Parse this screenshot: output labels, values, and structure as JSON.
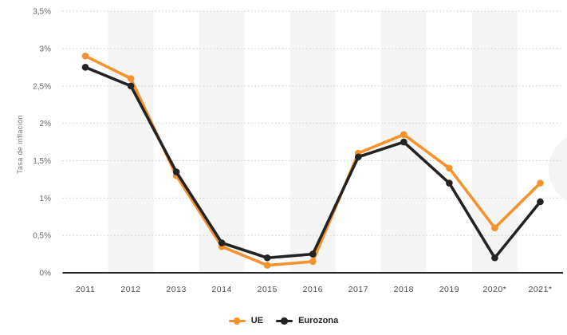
{
  "chart_data": {
    "type": "line",
    "title": "",
    "ylabel": "Tasa de inflación",
    "xlabel": "",
    "categories": [
      "2011",
      "2012",
      "2013",
      "2014",
      "2015",
      "2016",
      "2017",
      "2018",
      "2019",
      "2020*",
      "2021*"
    ],
    "series": [
      {
        "name": "UE",
        "color": "#F6922E",
        "values": [
          2.9,
          2.6,
          1.3,
          0.35,
          0.1,
          0.15,
          1.6,
          1.85,
          1.4,
          0.6,
          1.2
        ]
      },
      {
        "name": "Eurozona",
        "color": "#232323",
        "values": [
          2.75,
          2.5,
          1.35,
          0.4,
          0.2,
          0.25,
          1.55,
          1.75,
          1.2,
          0.2,
          0.95
        ]
      }
    ],
    "y_ticks": [
      "0%",
      "0,5%",
      "1%",
      "1,5%",
      "2%",
      "2,5%",
      "3%",
      "3,5%"
    ],
    "ylim": [
      0,
      3.5
    ],
    "grid": "horizontal-dotted",
    "legend_position": "bottom-center",
    "striped_columns": [
      1,
      3,
      5,
      7,
      9
    ]
  },
  "colors": {
    "stripe": "#F5F5F5",
    "gridline": "#CBCBCB",
    "axis_line": "#262626",
    "tick_text": "#666666",
    "x_tick_text": "#4D4D4D",
    "axis_title_text": "#757575",
    "legend_text": "#222222",
    "watermark": "#F4F4F4"
  }
}
